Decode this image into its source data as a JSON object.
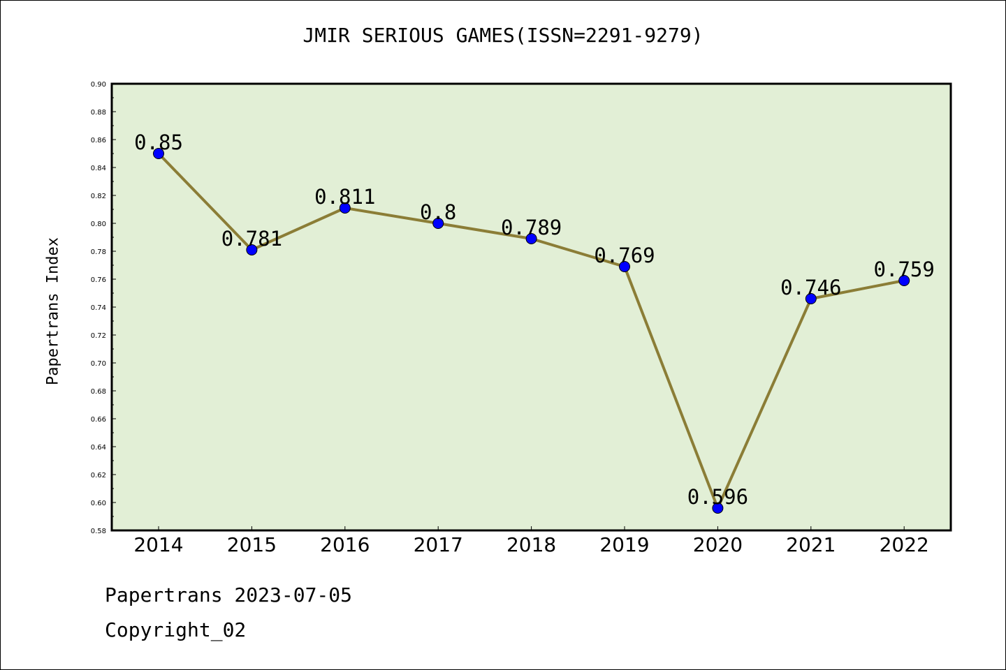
{
  "title": "JMIR SERIOUS GAMES(ISSN=2291-9279)",
  "footer": {
    "line1": "Papertrans 2023-07-05",
    "line2": "Copyright_02"
  },
  "colors": {
    "plot_background": "#e2efd6",
    "line": "#8b7d36",
    "marker": "#0000ff"
  },
  "chart_data": {
    "type": "line",
    "title": "JMIR SERIOUS GAMES(ISSN=2291-9279)",
    "xlabel": "",
    "ylabel": "Papertrans Index",
    "categories": [
      "2014",
      "2015",
      "2016",
      "2017",
      "2018",
      "2019",
      "2020",
      "2021",
      "2022"
    ],
    "values": [
      0.85,
      0.781,
      0.811,
      0.8,
      0.789,
      0.769,
      0.596,
      0.746,
      0.759
    ],
    "data_labels": [
      "0.85",
      "0.781",
      "0.811",
      "0.8",
      "0.789",
      "0.769",
      "0.596",
      "0.746",
      "0.759"
    ],
    "ylim": [
      0.58,
      0.9
    ],
    "yticks": [
      "0.58",
      "0.60",
      "0.62",
      "0.64",
      "0.66",
      "0.68",
      "0.70",
      "0.72",
      "0.74",
      "0.76",
      "0.78",
      "0.80",
      "0.82",
      "0.84",
      "0.86",
      "0.88",
      "0.90"
    ],
    "grid": false,
    "legend": "none"
  }
}
